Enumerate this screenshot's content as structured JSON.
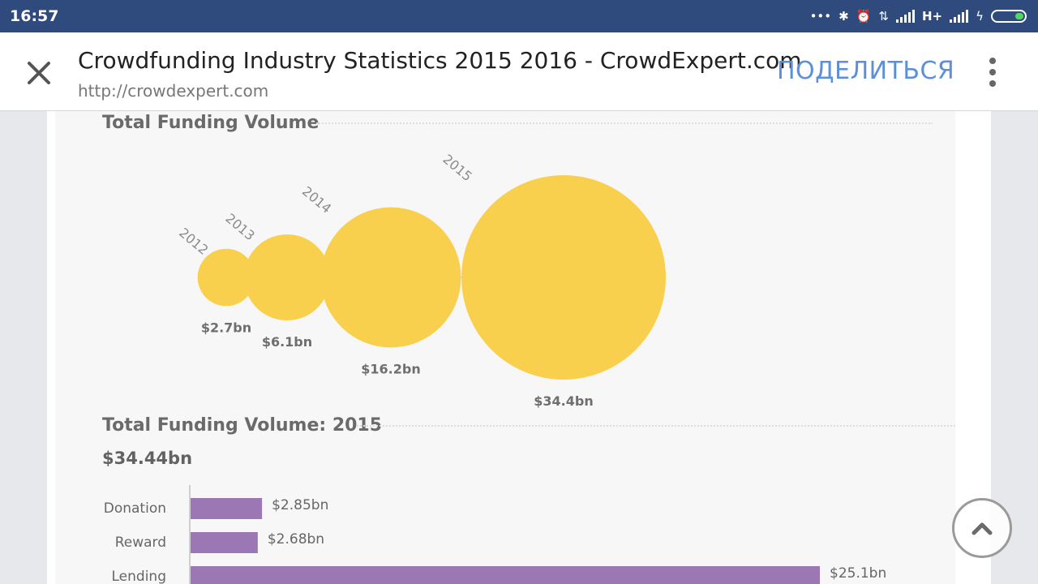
{
  "status_bar": {
    "time": "16:57",
    "network_label": "H+",
    "icons": [
      "more-dots-icon",
      "bluetooth-icon",
      "alarm-icon",
      "data-arrows-icon",
      "signal-icon",
      "signal-icon",
      "charging-icon",
      "battery-icon"
    ]
  },
  "toolbar": {
    "title": "Crowdfunding Industry Statistics 2015 2016 - CrowdExpert.com",
    "url": "http://crowdexpert.com",
    "share_label": "ПОДЕЛИТЬСЯ",
    "close_icon": "close-icon",
    "more_icon": "more-vert-icon"
  },
  "infographic": {
    "section1_title": "Total Funding Volume",
    "section2_title": "Total Funding Volume: 2015",
    "section2_total": "$34.44bn"
  },
  "colors": {
    "bubble": "#f9d04e",
    "bar": "#9b78b3",
    "status_bar": "#2f4a7d",
    "share": "#5b8fd9"
  },
  "chart_data": [
    {
      "type": "scatter",
      "title": "Total Funding Volume",
      "categories": [
        "2012",
        "2013",
        "2014",
        "2015"
      ],
      "values": [
        2.7,
        6.1,
        16.2,
        34.4
      ],
      "value_labels": [
        "$2.7bn",
        "$6.1bn",
        "$16.2bn",
        "$34.4bn"
      ]
    },
    {
      "type": "bar",
      "title": "Total Funding Volume: 2015",
      "categories": [
        "Donation",
        "Reward",
        "Lending"
      ],
      "values": [
        2.85,
        2.68,
        25.1
      ],
      "value_labels": [
        "$2.85bn",
        "$2.68bn",
        "$25.1bn"
      ]
    }
  ]
}
